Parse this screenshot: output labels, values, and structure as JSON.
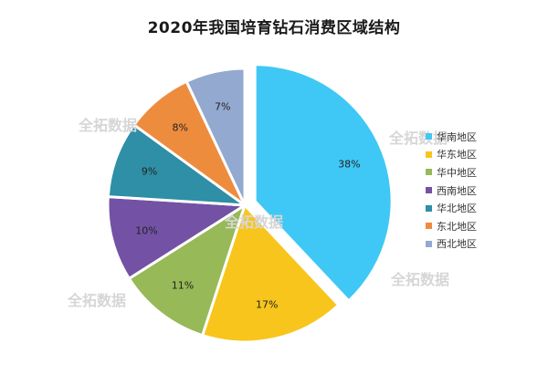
{
  "chart_data": {
    "type": "pie",
    "title": "2020年我国培育钻石消费区域结构",
    "categories": [
      "华南地区",
      "华东地区",
      "华中地区",
      "西南地区",
      "华北地区",
      "东北地区",
      "西北地区"
    ],
    "values": [
      38,
      17,
      11,
      10,
      9,
      8,
      7
    ],
    "value_labels": [
      "38%",
      "17%",
      "11%",
      "10%",
      "9%",
      "8%",
      "7%"
    ],
    "colors": [
      "#3fc8f5",
      "#f8c51c",
      "#97b957",
      "#7352a5",
      "#2e8fa6",
      "#ee8c3e",
      "#93a9cf"
    ],
    "legend_position": "right",
    "exploded_slice": "华南地区"
  },
  "watermarks": [
    "全拓数据",
    "全拓数据",
    "全拓数据",
    "全拓数据",
    "全拓数据"
  ]
}
